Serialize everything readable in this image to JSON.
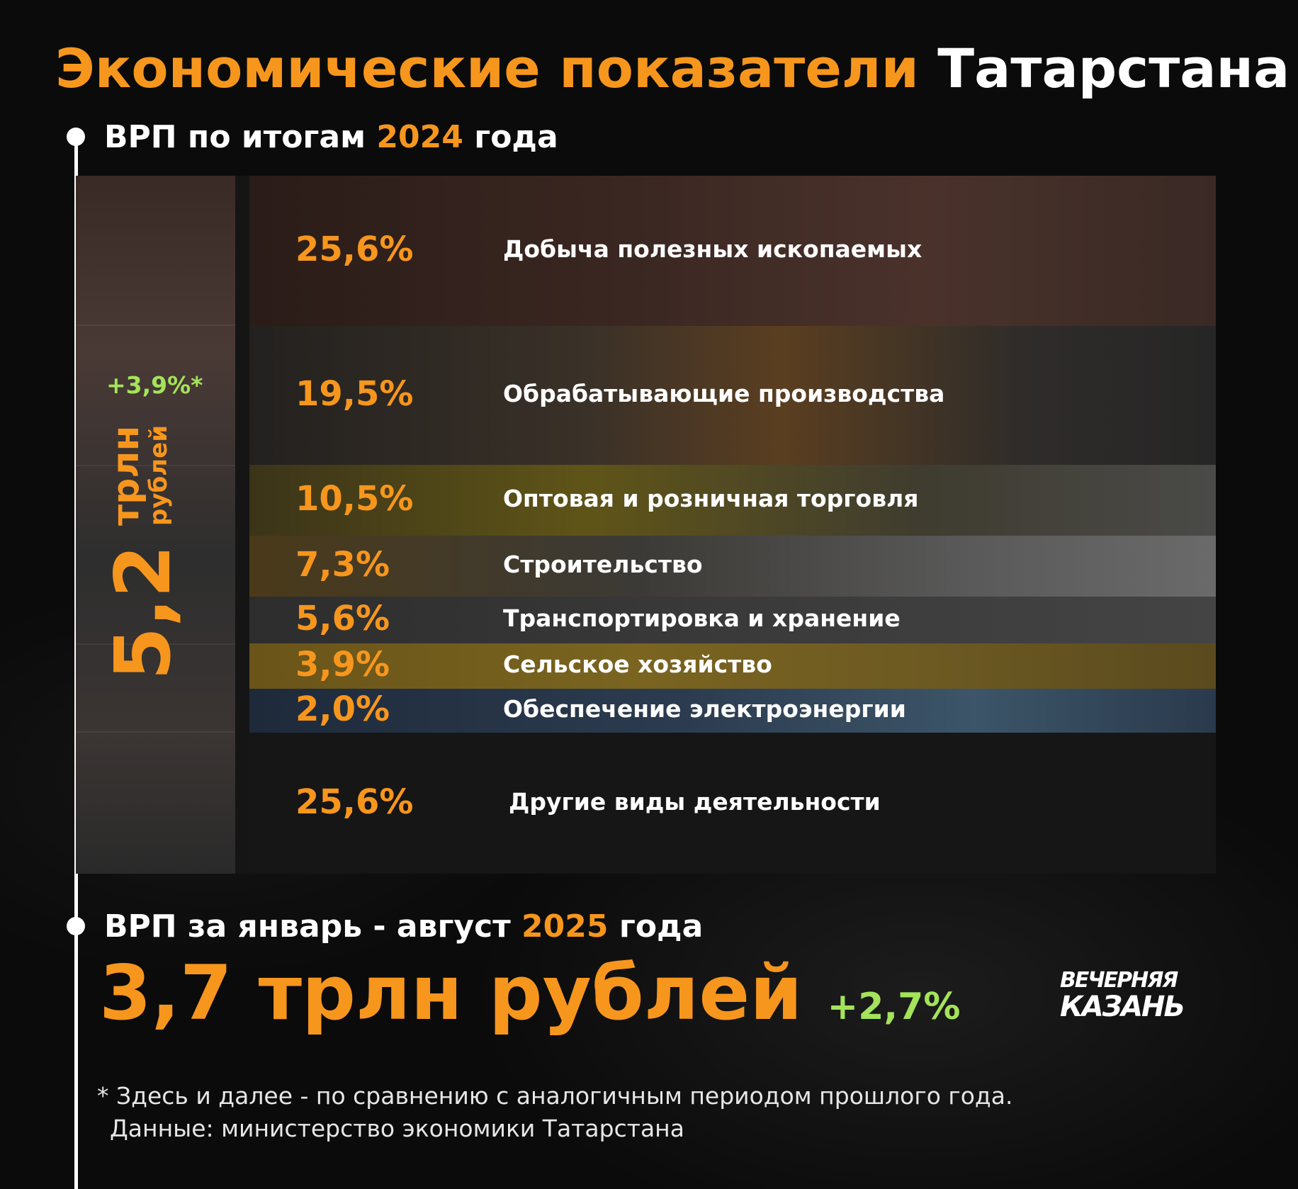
{
  "title": {
    "part1": "Экономические показатели",
    "part2": "Татарстана"
  },
  "section1": {
    "text_before": "ВРП по итогам",
    "year": "2024",
    "text_after": "года"
  },
  "total_2024": {
    "value": "5,2",
    "unit_line1": "трлн",
    "unit_line2": "рублей",
    "growth": "+3,9%*"
  },
  "section2": {
    "text_before": "ВРП за январь - август",
    "year": "2025",
    "text_after": "года"
  },
  "total_2025": {
    "value": "3,7 трлн рублей",
    "growth": "+2,7%"
  },
  "logo": {
    "line1": "ВЕЧЕРНЯЯ",
    "line2": "КАЗАНЬ"
  },
  "footnote": {
    "line1": "* Здесь и далее - по сравнению с аналогичным периодом прошлого года.",
    "line2": "Данные: министерство экономики Татарстана"
  },
  "colors": {
    "accent": "#f7961d",
    "growth": "#a4e35a",
    "text": "#ffffff",
    "background": "#0b0b0b"
  },
  "chart_data": {
    "type": "table",
    "title": "ВРП по итогам 2024 года",
    "unit": "%",
    "categories": [
      "Добыча полезных ископаемых",
      "Обрабатывающие производства",
      "Оптовая и розничная торговля",
      "Строительство",
      "Транспортировка и хранение",
      "Сельское хозяйство",
      "Обеспечение электроэнергии",
      "Другие виды деятельности"
    ],
    "values": [
      25.6,
      19.5,
      10.5,
      7.3,
      5.6,
      3.9,
      2.0,
      25.6
    ],
    "value_labels": [
      "25,6%",
      "19,5%",
      "10,5%",
      "7,3%",
      "5,6%",
      "3,9%",
      "2,0%",
      "25,6%"
    ]
  }
}
